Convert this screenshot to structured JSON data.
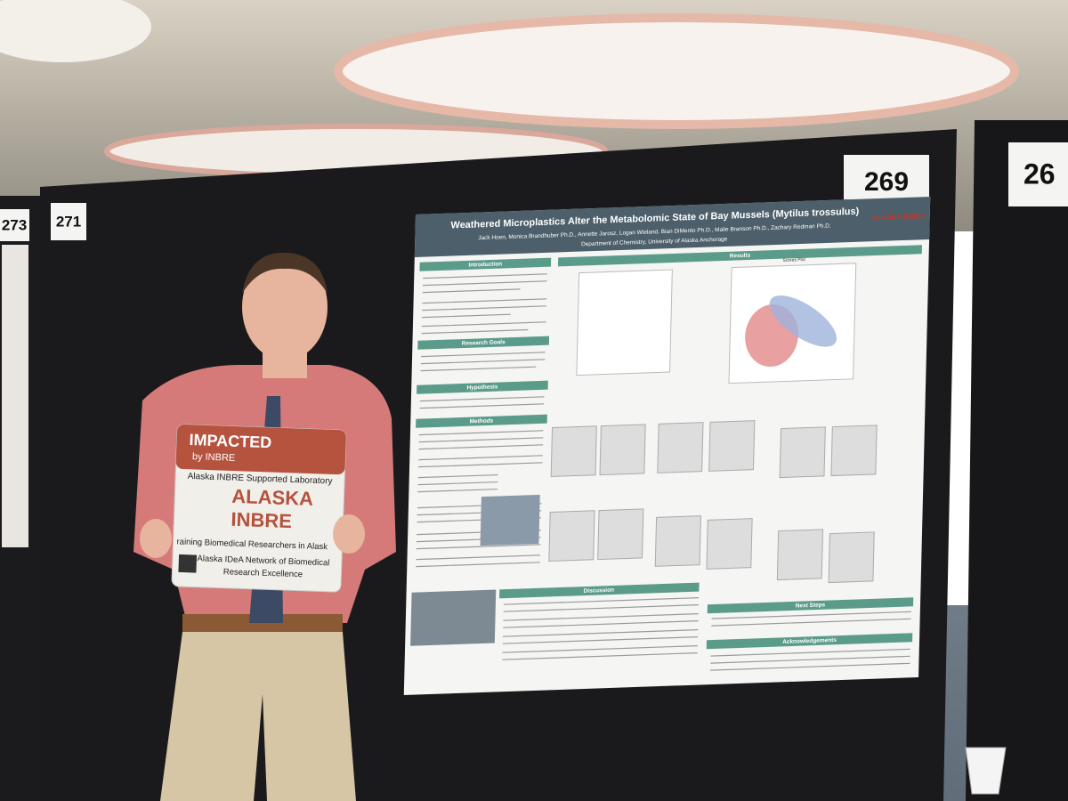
{
  "booth_numbers": [
    "273",
    "271",
    "269",
    "26"
  ],
  "sign": {
    "title": "IMPACTED",
    "subtitle": "by INBRE",
    "tagline": "Alaska INBRE Supported Laboratory",
    "logo_top": "ALASKA",
    "logo_bottom": "INBRE",
    "motto": "raining Biomedical Researchers in Alask",
    "network_line1": "Alaska IDeA Network of Biomedical",
    "network_line2": "Research Excellence"
  },
  "poster": {
    "title": "Weathered Microplastics Alter the Metabolomic State of Bay Mussels (Mytilus trossulus)",
    "authors": "Jack Hoen, Monica Brandhuber Ph.D., Annette Jarosz, Logan Wieland, Bian DiMento Ph.D., Malie Branson Ph.D., Zachary Redman Ph.D.",
    "department": "Department of Chemistry, University of Alaska Anchorage",
    "logo": "ALASKA INBRE",
    "sections": [
      "Introduction",
      "Research Goals",
      "Hypothesis",
      "Methods",
      "Results",
      "Discussion",
      "Next Steps",
      "Acknowledgements"
    ],
    "plot_title": "Scores Plot"
  }
}
